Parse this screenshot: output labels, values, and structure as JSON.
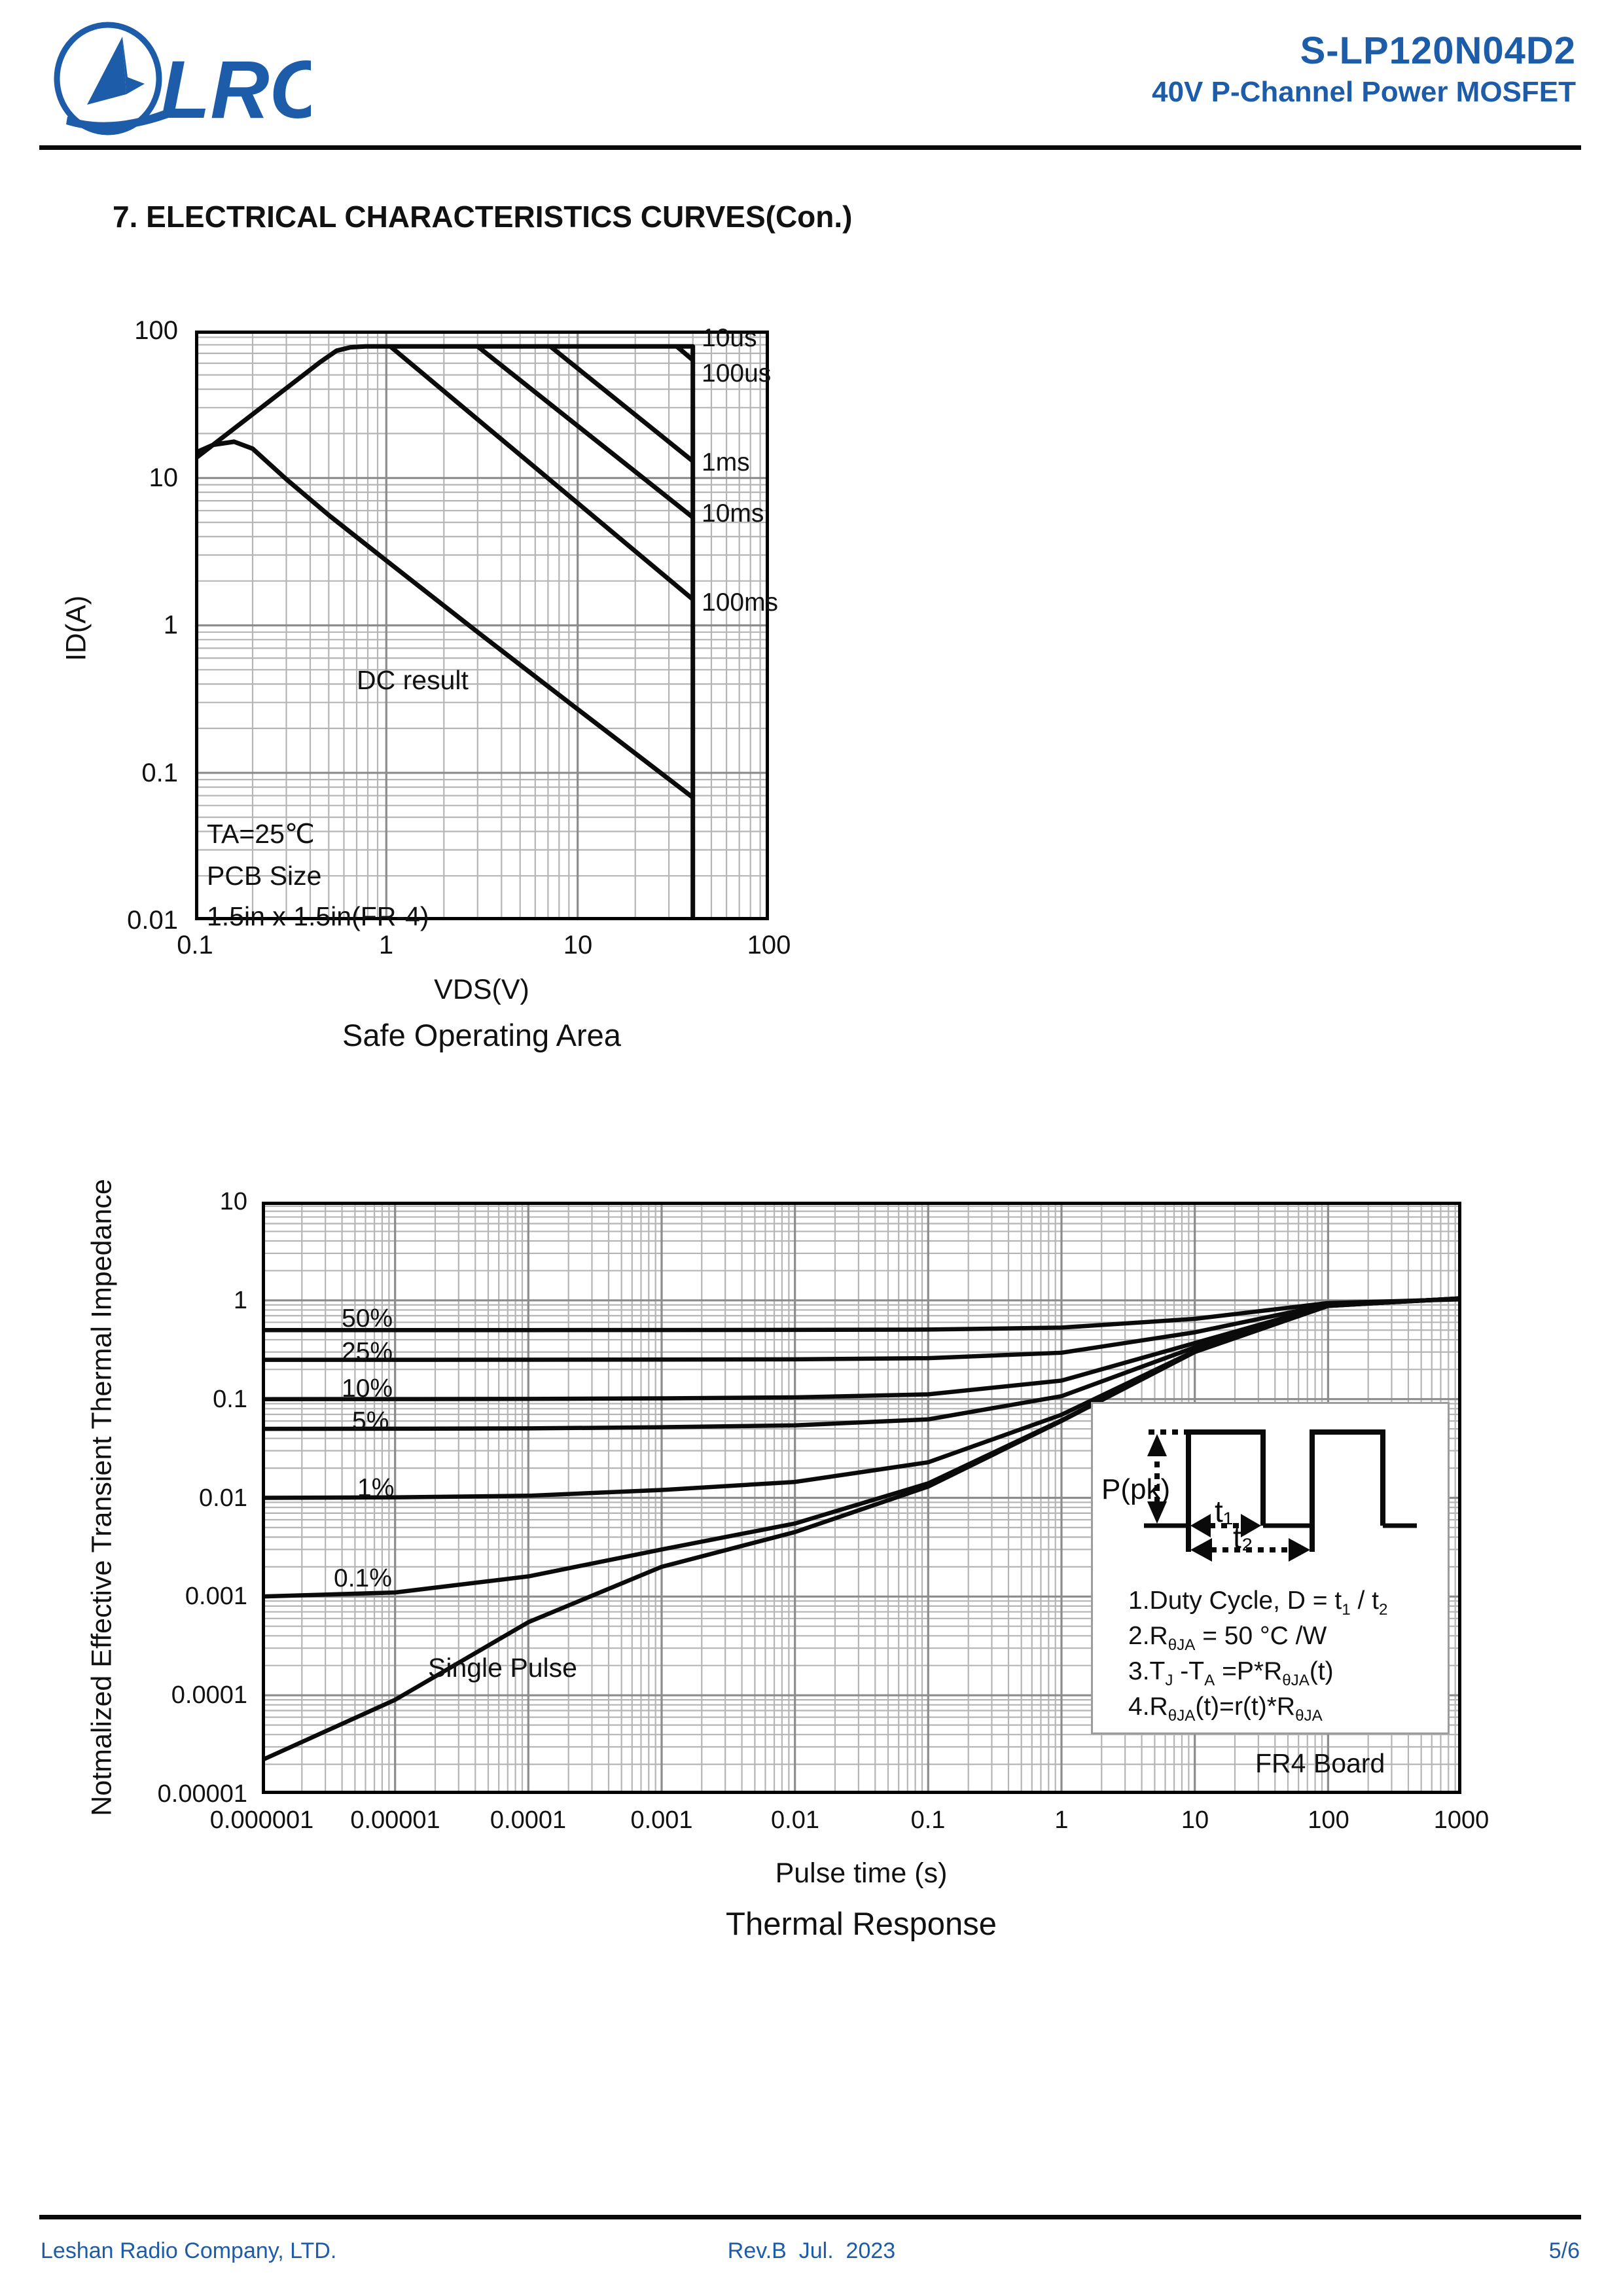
{
  "header": {
    "logo_text": "LRC",
    "part_number": "S-LP120N04D2",
    "subtitle": "40V P-Channel Power MOSFET"
  },
  "section_title": "7. ELECTRICAL CHARACTERISTICS CURVES(Con.)",
  "footer": {
    "company": "Leshan Radio Company, LTD.",
    "revision": "Rev.B  Jul.  2023",
    "page": "5/6"
  },
  "inset": {
    "waveform": {
      "peak": "P(pk)",
      "t1": "t₁",
      "t2": "t₂"
    },
    "notes": {
      "l1": [
        "1.Duty Cycle, D = t",
        "1",
        " / t",
        "2"
      ],
      "l2": [
        "2.R",
        "θJA",
        " = 50 °C /W"
      ],
      "l3": [
        "3.T",
        "J",
        " -T",
        "A",
        " =P*R",
        "θJA",
        "(t)"
      ],
      "l4": [
        "4.R",
        "θJA",
        "(t)=r(t)*R",
        "θJA"
      ]
    }
  },
  "chart_data": [
    {
      "id": "soa",
      "type": "line",
      "title": "Safe Operating Area",
      "xlabel": "VDS(V)",
      "ylabel": "ID(A)",
      "log_x": true,
      "log_y": true,
      "xlim": [
        0.1,
        100
      ],
      "ylim": [
        0.01,
        100
      ],
      "grid": "log major+minor, both axes",
      "legend": "labels at right edge of curves",
      "x_ticks": [
        "0.1",
        "1",
        "10",
        "100"
      ],
      "y_ticks": [
        "100",
        "10",
        "1",
        "0.1",
        "0.01"
      ],
      "annotations": [
        "TA=25℃",
        "PCB Size",
        "1.5in x 1.5in(FR-4)"
      ],
      "series": [
        {
          "name": "10us",
          "points": [
            [
              0.1,
              13.5
            ],
            [
              0.45,
              61
            ],
            [
              0.55,
              73
            ],
            [
              0.65,
              77
            ],
            [
              0.78,
              78
            ],
            [
              40,
              78
            ],
            [
              40,
              0.01
            ]
          ]
        },
        {
          "name": "100us",
          "points": [
            [
              33,
              78
            ],
            [
              40,
              63
            ]
          ]
        },
        {
          "name": "1ms",
          "points": [
            [
              7.2,
              78
            ],
            [
              40,
              13
            ]
          ]
        },
        {
          "name": "10ms",
          "points": [
            [
              3.0,
              78
            ],
            [
              40,
              5.4
            ]
          ]
        },
        {
          "name": "100ms",
          "points": [
            [
              1.05,
              78
            ],
            [
              40,
              1.5
            ]
          ]
        },
        {
          "name": "DC result",
          "points": [
            [
              0.1,
              14.8
            ],
            [
              0.125,
              16.8
            ],
            [
              0.16,
              17.6
            ],
            [
              0.2,
              15.8
            ],
            [
              0.3,
              9.8
            ],
            [
              0.5,
              5.6
            ],
            [
              1,
              2.75
            ],
            [
              3,
              0.9
            ],
            [
              10,
              0.27
            ],
            [
              40,
              0.068
            ]
          ]
        }
      ]
    },
    {
      "id": "thermal",
      "type": "line",
      "title": "Thermal Response",
      "xlabel": "Pulse time (s)",
      "ylabel": "Notmalized Effective Transient Thermal Impedance",
      "log_x": true,
      "log_y": true,
      "xlim": [
        1e-06,
        1000
      ],
      "ylim": [
        1e-05,
        10
      ],
      "grid": "log major+minor, both axes",
      "x_ticks": [
        "0.000001",
        "0.00001",
        "0.0001",
        "0.001",
        "0.01",
        "0.1",
        "1",
        "10",
        "100",
        "1000"
      ],
      "y_ticks": [
        "10",
        "1",
        "0.1",
        "0.01",
        "0.001",
        "0.0001",
        "0.00001"
      ],
      "annotations": [
        "FR4 Board"
      ],
      "x": [
        1e-06,
        1e-05,
        0.0001,
        0.001,
        0.01,
        0.1,
        1,
        10,
        100,
        1000
      ],
      "series": [
        {
          "name": "50%",
          "duty": 0.5,
          "values": [
            0.5,
            0.5,
            0.5003,
            0.501,
            0.5023,
            0.5065,
            0.53,
            0.65,
            0.94,
            1.025
          ]
        },
        {
          "name": "25%",
          "duty": 0.25,
          "values": [
            0.25,
            0.2501,
            0.2504,
            0.2515,
            0.2534,
            0.2598,
            0.295,
            0.475,
            0.91,
            1.0375
          ]
        },
        {
          "name": "10%",
          "duty": 0.1,
          "values": [
            0.1,
            0.1001,
            0.1005,
            0.1018,
            0.1041,
            0.1117,
            0.154,
            0.37,
            0.892,
            1.045
          ]
        },
        {
          "name": "5%",
          "duty": 0.05,
          "values": [
            0.05,
            0.0501,
            0.0505,
            0.0519,
            0.0543,
            0.0624,
            0.107,
            0.335,
            0.886,
            1.0475
          ]
        },
        {
          "name": "1%",
          "duty": 0.01,
          "values": [
            0.01,
            0.0101,
            0.0105,
            0.012,
            0.0145,
            0.0229,
            0.0694,
            0.307,
            0.881,
            1.0495
          ]
        },
        {
          "name": "0.1%",
          "duty": 0.001,
          "values": [
            0.001,
            0.0011,
            0.0016,
            0.003,
            0.0055,
            0.014,
            0.0609,
            0.3007,
            0.88,
            1.05
          ]
        },
        {
          "name": "Single Pulse",
          "values": [
            2.2e-05,
            9e-05,
            0.00055,
            0.002,
            0.0045,
            0.013,
            0.06,
            0.3,
            0.88,
            1.05
          ]
        }
      ]
    }
  ]
}
